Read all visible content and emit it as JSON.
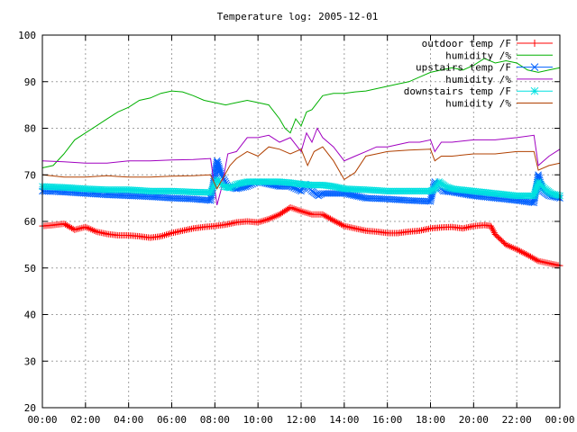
{
  "chart_data": {
    "type": "line",
    "title": "Temperature log: 2005-12-01",
    "xlabel": "",
    "ylabel": "",
    "xlim": [
      0,
      24
    ],
    "ylim": [
      20,
      100
    ],
    "x_ticks": [
      0,
      2,
      4,
      6,
      8,
      10,
      12,
      14,
      16,
      18,
      20,
      22,
      24
    ],
    "x_tick_labels": [
      "00:00",
      "02:00",
      "04:00",
      "06:00",
      "08:00",
      "10:00",
      "12:00",
      "14:00",
      "16:00",
      "18:00",
      "20:00",
      "22:00",
      "00:00"
    ],
    "y_ticks": [
      20,
      30,
      40,
      50,
      60,
      70,
      80,
      90,
      100
    ],
    "grid": true,
    "legend_position": "top-right",
    "series": [
      {
        "name": "outdoor temp /F",
        "color": "#ff0000",
        "marker": "plus",
        "x": [
          0,
          0.5,
          1,
          1.5,
          2,
          2.5,
          3,
          3.5,
          4,
          4.5,
          5,
          5.5,
          6,
          6.5,
          7,
          7.5,
          8,
          8.5,
          9,
          9.5,
          10,
          10.5,
          11,
          11.5,
          12,
          12.5,
          13,
          13.5,
          14,
          14.5,
          15,
          15.5,
          16,
          16.5,
          17,
          17.5,
          18,
          18.5,
          19,
          19.5,
          20,
          20.5,
          20.8,
          21,
          21.5,
          22,
          22.5,
          23,
          23.5,
          24
        ],
        "y": [
          59,
          59.2,
          59.5,
          58.2,
          58.8,
          57.8,
          57.3,
          57,
          57,
          56.8,
          56.5,
          56.8,
          57.5,
          58,
          58.5,
          58.8,
          59,
          59.3,
          59.8,
          60,
          59.8,
          60.5,
          61.5,
          63,
          62.2,
          61.5,
          61.5,
          60.2,
          59,
          58.5,
          58,
          57.8,
          57.5,
          57.5,
          57.8,
          58,
          58.5,
          58.7,
          58.8,
          58.5,
          59,
          59.2,
          59,
          57.2,
          55,
          54,
          52.8,
          51.5,
          51,
          50.5
        ]
      },
      {
        "name": "humidity /%",
        "color": "#00b000",
        "marker": "none",
        "x": [
          0,
          0.5,
          1,
          1.5,
          2,
          2.5,
          3,
          3.5,
          4,
          4.5,
          5,
          5.5,
          6,
          6.5,
          7,
          7.5,
          8,
          8.5,
          9,
          9.5,
          10,
          10.5,
          11,
          11.25,
          11.5,
          11.75,
          12,
          12.25,
          12.5,
          13,
          13.5,
          14,
          14.5,
          15,
          15.5,
          16,
          16.5,
          17,
          17.5,
          18,
          18.5,
          19,
          19.5,
          20,
          20.5,
          21,
          21.5,
          22,
          22.5,
          23,
          23.5,
          24
        ],
        "y": [
          71.5,
          72,
          74.5,
          77.5,
          79,
          80.5,
          82,
          83.5,
          84.5,
          86,
          86.5,
          87.5,
          88,
          87.8,
          87,
          86,
          85.5,
          85,
          85.5,
          86,
          85.5,
          85,
          82,
          80,
          79,
          82,
          80.5,
          83.5,
          84,
          87,
          87.5,
          87.5,
          87.8,
          88,
          88.5,
          89,
          89.5,
          90,
          91,
          92,
          92.5,
          93,
          92.5,
          93.5,
          95,
          94,
          94.5,
          94,
          92.5,
          92,
          92.5,
          93
        ]
      },
      {
        "name": "upstairs temp /F",
        "color": "#0060ff",
        "marker": "x",
        "x": [
          0,
          1,
          2,
          3,
          4,
          5,
          6,
          7,
          7.8,
          8.1,
          8.3,
          8.6,
          9,
          9.5,
          10,
          10.5,
          11,
          11.5,
          12,
          12.2,
          12.5,
          12.8,
          13,
          13.5,
          14,
          14.5,
          15,
          16,
          17,
          18,
          18.2,
          18.4,
          18.6,
          19,
          20,
          21,
          22,
          22.8,
          23,
          23.2,
          23.5,
          24
        ],
        "y": [
          66.5,
          66.3,
          66,
          65.7,
          65.5,
          65.3,
          65,
          64.8,
          64.5,
          73,
          70,
          67.5,
          67,
          67.5,
          68.5,
          68,
          67.5,
          67.5,
          66.5,
          68,
          66.5,
          65.5,
          66,
          66,
          66,
          65.5,
          65,
          64.8,
          64.5,
          64.3,
          68.5,
          67.5,
          66.5,
          66.3,
          65.5,
          65,
          64.5,
          64,
          70,
          66.5,
          65.5,
          65
        ]
      },
      {
        "name": "humidity /%",
        "color": "#a000c0",
        "marker": "none",
        "x": [
          0,
          1,
          2,
          3,
          4,
          5,
          6,
          7,
          7.8,
          8.1,
          8.3,
          8.6,
          9,
          9.5,
          10,
          10.5,
          11,
          11.5,
          12,
          12.25,
          12.5,
          12.75,
          13,
          13.5,
          14,
          14.5,
          15,
          15.5,
          16,
          16.5,
          17,
          17.5,
          18,
          18.2,
          18.5,
          19,
          20,
          21,
          22,
          22.8,
          23,
          23.5,
          24
        ],
        "y": [
          73,
          72.8,
          72.5,
          72.5,
          73,
          73,
          73.2,
          73.3,
          73.5,
          63.5,
          67,
          74.5,
          75,
          78,
          78,
          78.5,
          77,
          78,
          75,
          79,
          77,
          80,
          78,
          76,
          73,
          74,
          75,
          76,
          76,
          76.5,
          77,
          77,
          77.5,
          75,
          77,
          77,
          77.5,
          77.5,
          78,
          78.5,
          72,
          74,
          75.5
        ]
      },
      {
        "name": "downstairs temp /F",
        "color": "#00e0e0",
        "marker": "star",
        "x": [
          0,
          1,
          2,
          3,
          4,
          5,
          6,
          7,
          7.8,
          8.1,
          8.4,
          8.7,
          9,
          9.5,
          10,
          10.5,
          11,
          11.5,
          12,
          12.5,
          13,
          13.5,
          14,
          15,
          16,
          17,
          18,
          18.2,
          18.4,
          18.7,
          19,
          20,
          21,
          22,
          22.8,
          23,
          23.3,
          23.6,
          24
        ],
        "y": [
          67.5,
          67.3,
          67,
          66.8,
          66.8,
          66.5,
          66.5,
          66.3,
          66.2,
          69,
          67.5,
          67.2,
          68,
          68.5,
          68.5,
          68.5,
          68.5,
          68.3,
          68,
          67.8,
          67.8,
          67.5,
          67,
          66.8,
          66.5,
          66.5,
          66.5,
          67,
          68.5,
          67.5,
          67,
          66.5,
          66,
          65.5,
          65.5,
          68.5,
          67,
          66,
          65.5
        ]
      },
      {
        "name": "humidity /%",
        "color": "#b04000",
        "marker": "none",
        "x": [
          0,
          1,
          2,
          3,
          4,
          5,
          6,
          7,
          7.8,
          8.1,
          8.4,
          8.7,
          9,
          9.5,
          10,
          10.5,
          11,
          11.5,
          12,
          12.3,
          12.6,
          13,
          13.5,
          14,
          14.5,
          15,
          15.5,
          16,
          17,
          18,
          18.2,
          18.5,
          19,
          20,
          21,
          22,
          22.8,
          23,
          23.5,
          24
        ],
        "y": [
          70,
          69.5,
          69.5,
          69.8,
          69.5,
          69.5,
          69.7,
          69.8,
          70,
          67,
          69.5,
          72,
          73.5,
          75,
          74,
          76,
          75.5,
          74.5,
          75.5,
          72,
          75,
          76,
          73,
          69,
          70.5,
          74,
          74.5,
          75,
          75.3,
          75.5,
          73,
          74,
          74,
          74.5,
          74.5,
          75,
          75,
          71,
          72,
          72.5
        ]
      }
    ]
  }
}
